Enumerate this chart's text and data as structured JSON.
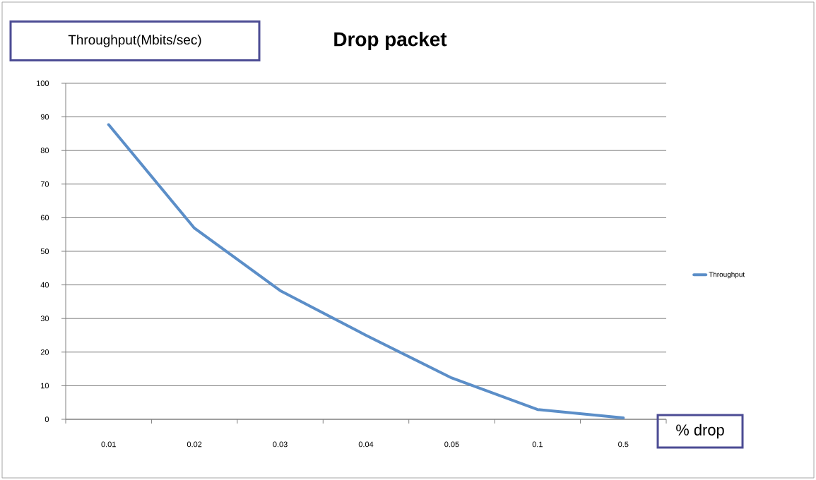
{
  "chart_data": {
    "type": "line",
    "title": "Drop packet",
    "xlabel": "% drop",
    "ylabel": "Throughput(Mbits/sec)",
    "categories": [
      "0.01",
      "0.02",
      "0.03",
      "0.04",
      "0.05",
      "0.1",
      "0.5"
    ],
    "series": [
      {
        "name": "Throughput",
        "color": "#5b8ec8",
        "values": [
          87.7,
          56.9,
          38.3,
          25,
          12.3,
          2.9,
          0.4
        ]
      }
    ],
    "ylim": [
      0,
      100
    ],
    "yticks": [
      0,
      10,
      20,
      30,
      40,
      50,
      60,
      70,
      80,
      90,
      100
    ],
    "grid": "y",
    "legend": "right"
  }
}
